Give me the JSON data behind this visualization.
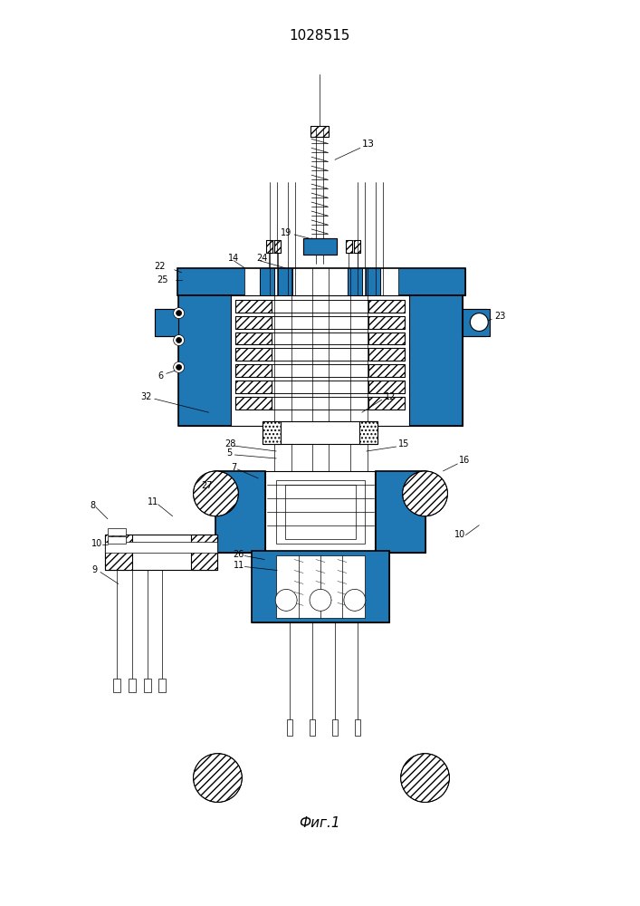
{
  "title": "1028515",
  "caption": "Фиг.1",
  "bg_color": "#ffffff",
  "line_color": "#000000",
  "title_fontsize": 11,
  "caption_fontsize": 11,
  "fig_width": 7.07,
  "fig_height": 10.0,
  "dpi": 100
}
